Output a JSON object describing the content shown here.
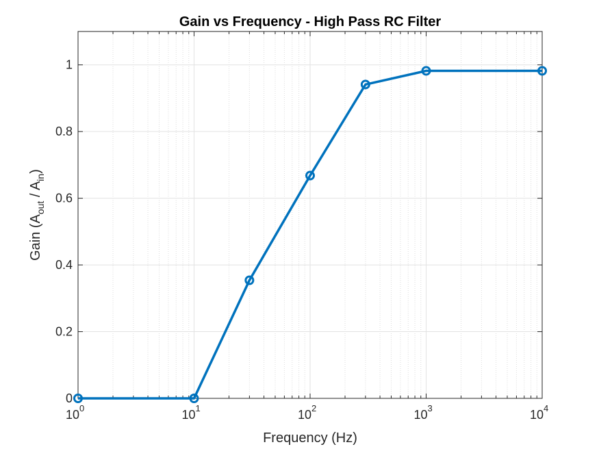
{
  "chart_data": {
    "type": "line",
    "title": "Gain vs Frequency - High Pass RC Filter",
    "xlabel": "Frequency (Hz)",
    "ylabel": {
      "prefix": "Gain (A",
      "sub1": "out",
      "middle": " / A",
      "sub2": "in",
      "suffix": ")"
    },
    "x_scale": "log",
    "xlim": [
      1,
      10000
    ],
    "ylim": [
      0,
      1.1
    ],
    "x_ticks": [
      {
        "base": "10",
        "exp": "0"
      },
      {
        "base": "10",
        "exp": "1"
      },
      {
        "base": "10",
        "exp": "2"
      },
      {
        "base": "10",
        "exp": "3"
      },
      {
        "base": "10",
        "exp": "4"
      }
    ],
    "y_ticks": [
      "0",
      "0.2",
      "0.4",
      "0.6",
      "0.8",
      "1"
    ],
    "grid": true,
    "minor_grid": true,
    "legend": "none",
    "series": [
      {
        "color": "#0072BD",
        "marker": "circle",
        "x": [
          1,
          10,
          30,
          100,
          300,
          1000,
          10000
        ],
        "y": [
          0.0,
          0.0,
          0.354,
          0.668,
          0.941,
          0.982,
          0.982
        ]
      }
    ]
  }
}
